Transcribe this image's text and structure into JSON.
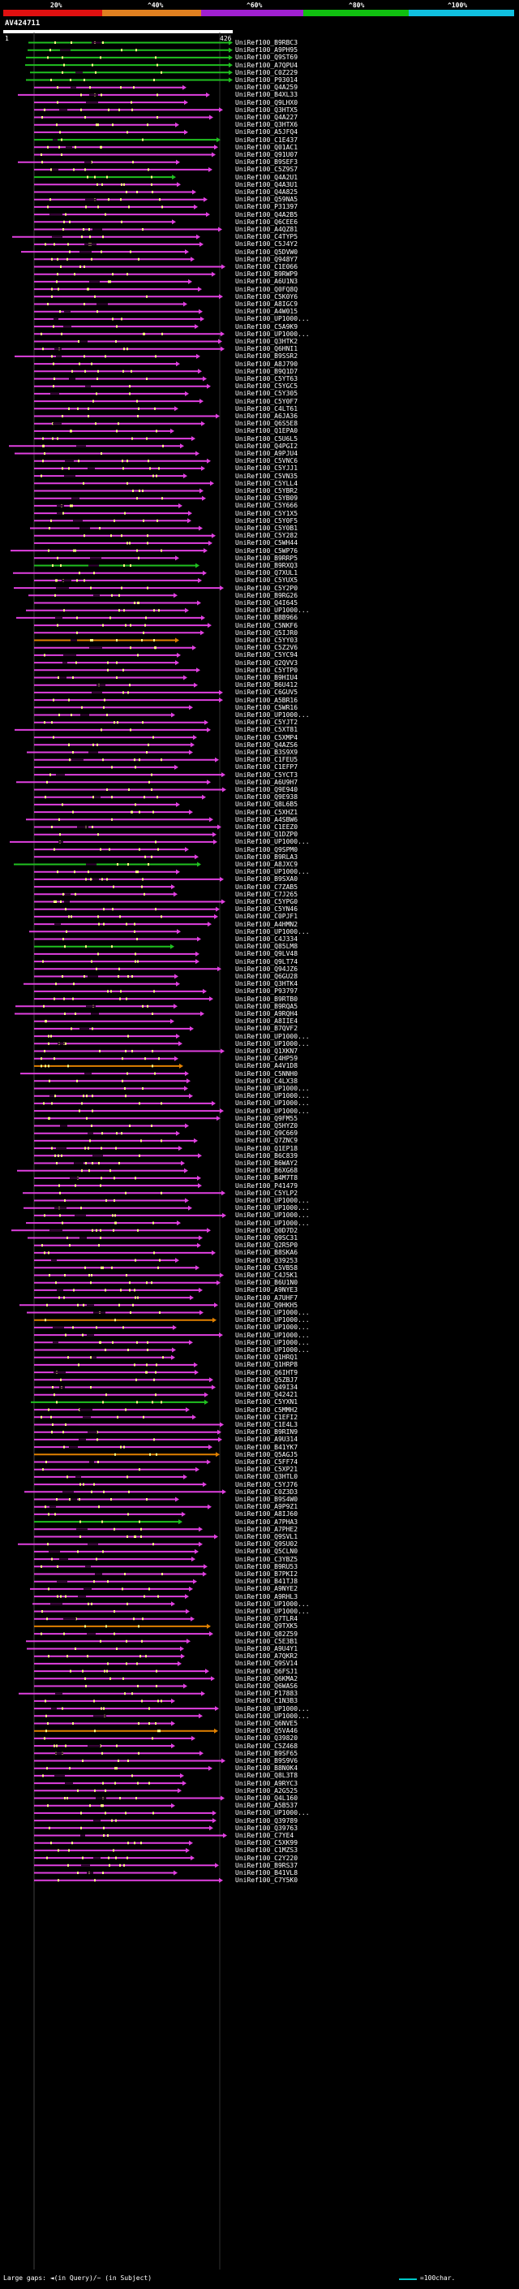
{
  "colors": {
    "background": "#000000",
    "identity_0_20": "#e01010",
    "identity_20_40": "#e08020",
    "identity_40_60": "#a020d0",
    "identity_60_80": "#10c010",
    "identity_80_100": "#10c0e0",
    "hit_magenta": "#e040e0",
    "hit_green": "#20c020",
    "hit_orange": "#e08000",
    "gap_marker": "#ffff80"
  },
  "identity_scale": [
    {
      "label": "20%"
    },
    {
      "label": "^40%"
    },
    {
      "label": "^60%"
    },
    {
      "label": "^80%"
    },
    {
      "label": "^100%"
    }
  ],
  "query": {
    "title": "AV424711",
    "start": "1",
    "end": "426"
  },
  "hits": [
    "UniRef100_B9RBC3",
    "UniRef100_A9PH95",
    "UniRef100_Q9ST69",
    "UniRef100_A7QPU4",
    "UniRef100_C0Z229",
    "UniRef100_P93014",
    "UniRef100_Q4A259",
    "UniRef100_B4XL33",
    "UniRef100_Q9LHX0",
    "UniRef100_Q3HTX5",
    "UniRef100_Q4A227",
    "UniRef100_Q3HTX6",
    "UniRef100_A5JFQ4",
    "UniRef100_C1E437",
    "UniRef100_Q01AC1",
    "UniRef100_Q91U07",
    "UniRef100_B9SEF3",
    "UniRef100_C5Z9S7",
    "UniRef100_Q4A2U1",
    "UniRef100_Q4A3U1",
    "UniRef100_Q4A825",
    "UniRef100_Q59NA5",
    "UniRef100_P31397",
    "UniRef100_Q4A2B5",
    "UniRef100_Q6CEE6",
    "UniRef100_A4QZ81",
    "UniRef100_C4TYP5",
    "UniRef100_C5J4Y2",
    "UniRef100_Q5DVW0",
    "UniRef100_Q948Y7",
    "UniRef100_C1E066",
    "UniRef100_B9RWP9",
    "UniRef100_A6U1N3",
    "UniRef100_Q0FQ8Q",
    "UniRef100_C5K0Y6",
    "UniRef100_A8IGC9",
    "UniRef100_A4W015",
    "UniRef100_UP1000...",
    "UniRef100_C5A9K9",
    "UniRef100_UP1000...",
    "UniRef100_Q3HTK2",
    "UniRef100_Q6HNI1",
    "UniRef100_B9SSR2",
    "UniRef100_A8J790",
    "UniRef100_B9Q1D7",
    "UniRef100_C5YT63",
    "UniRef100_C5YGC5",
    "UniRef100_C5Y305",
    "UniRef100_C5Y0F7",
    "UniRef100_C4LT61",
    "UniRef100_A6JA36",
    "UniRef100_Q6S5E8",
    "UniRef100_Q1EPA0",
    "UniRef100_C5U6L5",
    "UniRef100_Q4PGI2",
    "UniRef100_A9PJU4",
    "UniRef100_C5VNC6",
    "UniRef100_C5YJJ1",
    "UniRef100_C5VN35",
    "UniRef100_C5YLL4",
    "UniRef100_C5YBR2",
    "UniRef100_C5YB09",
    "UniRef100_C5Y666",
    "UniRef100_C5Y1X5",
    "UniRef100_C5Y0F5",
    "UniRef100_C5Y0B1",
    "UniRef100_C5Y282",
    "UniRef100_C5WH44",
    "UniRef100_C5WP76",
    "UniRef100_B9RRP5",
    "UniRef100_B9RXQ3",
    "UniRef100_Q7XUL1",
    "UniRef100_C5YUX5",
    "UniRef100_C5Y2P0",
    "UniRef100_B9RG26",
    "UniRef100_Q4I645",
    "UniRef100_UP1000...",
    "UniRef100_B8B966",
    "UniRef100_C5NKF6",
    "UniRef100_Q5IJR0",
    "UniRef100_C5YY03",
    "UniRef100_C5Z2V6",
    "UniRef100_C5YC94",
    "UniRef100_Q2QVV3",
    "UniRef100_C5YTP0",
    "UniRef100_B9HIU4",
    "UniRef100_B6U412",
    "UniRef100_C6GUV5",
    "UniRef100_A5BR16",
    "UniRef100_C5WR16",
    "UniRef100_UP1000...",
    "UniRef100_C5YJT2",
    "UniRef100_C5XT81",
    "UniRef100_C5XMP4",
    "UniRef100_Q4AZS6",
    "UniRef100_B3S9X9",
    "UniRef100_C1FEU5",
    "UniRef100_C1EFP7",
    "UniRef100_C5YCT3",
    "UniRef100_A6U9H7",
    "UniRef100_Q9E940",
    "UniRef100_Q9E938",
    "UniRef100_Q8L6B5",
    "UniRef100_C5XHZ1",
    "UniRef100_A4SBW6",
    "UniRef100_C1EEZ0",
    "UniRef100_Q1DZP0",
    "UniRef100_UP1000...",
    "UniRef100_Q9SPM0",
    "UniRef100_B9RLA3",
    "UniRef100_A8JXC9",
    "UniRef100_UP1000...",
    "UniRef100_B9SXA0",
    "UniRef100_C7ZAB5",
    "UniRef100_C7J265",
    "UniRef100_C5YPG0",
    "UniRef100_C5YN46",
    "UniRef100_C0PJF1",
    "UniRef100_A4HMN2",
    "UniRef100_UP1000...",
    "UniRef100_C4J334",
    "UniRef100_Q85LM8",
    "UniRef100_Q9LV48",
    "UniRef100_Q9LT74",
    "UniRef100_Q94JZ6",
    "UniRef100_Q6GU28",
    "UniRef100_Q3HTK4",
    "UniRef100_P93797",
    "UniRef100_B9RTB0",
    "UniRef100_B9RQA5",
    "UniRef100_A9RQH4",
    "UniRef100_A8IIE4",
    "UniRef100_B7QVF2",
    "UniRef100_UP1000...",
    "UniRef100_UP1000...",
    "UniRef100_Q1XKN7",
    "UniRef100_C4HP59",
    "UniRef100_A4V1D8",
    "UniRef100_C5NNH0",
    "UniRef100_C4LX38",
    "UniRef100_UP1000...",
    "UniRef100_UP1000...",
    "UniRef100_UP1000...",
    "UniRef100_UP1000...",
    "UniRef100_Q9FM55",
    "UniRef100_Q5HYZ0",
    "UniRef100_Q9C669",
    "UniRef100_Q7ZNC9",
    "UniRef100_Q1EP18",
    "UniRef100_B6C839",
    "UniRef100_B6WAY2",
    "UniRef100_B6XG68",
    "UniRef100_B4M7T8",
    "UniRef100_P41479",
    "UniRef100_C5YLP2",
    "UniRef100_UP1000...",
    "UniRef100_UP1000...",
    "UniRef100_UP1000...",
    "UniRef100_UP1000...",
    "UniRef100_Q0D7D2",
    "UniRef100_Q9SC31",
    "UniRef100_Q2R5P0",
    "UniRef100_B8SKA6",
    "UniRef100_Q39253",
    "UniRef100_C5VB58",
    "UniRef100_C4J5K1",
    "UniRef100_B6U1N0",
    "UniRef100_A9NYE3",
    "UniRef100_A7UHF7",
    "UniRef100_Q9HKH5",
    "UniRef100_UP1000...",
    "UniRef100_UP1000...",
    "UniRef100_UP1000...",
    "UniRef100_UP1000...",
    "UniRef100_UP1000...",
    "UniRef100_UP1000...",
    "UniRef100_Q1HRQ1",
    "UniRef100_Q1HRP8",
    "UniRef100_Q6IHT9",
    "UniRef100_Q5ZBJ7",
    "UniRef100_Q49I34",
    "UniRef100_Q42421",
    "UniRef100_C5YXN1",
    "UniRef100_C5MMH2",
    "UniRef100_C1EFI2",
    "UniRef100_C1E4L3",
    "UniRef100_B9RIN9",
    "UniRef100_A9U314",
    "UniRef100_B41YK7",
    "UniRef100_Q5AGJ5",
    "UniRef100_C5FF74",
    "UniRef100_C5XP21",
    "UniRef100_Q3HTL0",
    "UniRef100_C5YJ76",
    "UniRef100_C0Z3D3",
    "UniRef100_B9S4W0",
    "UniRef100_A9P9Z1",
    "UniRef100_A8IJ60",
    "UniRef100_A7PHA3",
    "UniRef100_A7PHE2",
    "UniRef100_Q9SVL1",
    "UniRef100_Q9SU02",
    "UniRef100_Q5CLN0",
    "UniRef100_C3YBZ5",
    "UniRef100_B9RU53",
    "UniRef100_B7PKI2",
    "UniRef100_B41TJ8",
    "UniRef100_A9NYE2",
    "UniRef100_A9RHL3",
    "UniRef100_UP1000...",
    "UniRef100_UP1000...",
    "UniRef100_Q7TLR4",
    "UniRef100_Q9TXK5",
    "UniRef100_Q82Z59",
    "UniRef100_C5E3B1",
    "UniRef100_A9U4Y1",
    "UniRef100_A7QKR2",
    "UniRef100_Q9SV14",
    "UniRef100_Q6FSJ1",
    "UniRef100_Q6KMA2",
    "UniRef100_Q6WAS6",
    "UniRef100_P17883",
    "UniRef100_C1N3B3",
    "UniRef100_UP1000...",
    "UniRef100_UP1000...",
    "UniRef100_Q6NVE5",
    "UniRef100_Q5VA46",
    "UniRef100_Q39820",
    "UniRef100_C5Z468",
    "UniRef100_B9SF65",
    "UniRef100_B9S9V6",
    "UniRef100_B8N0K4",
    "UniRef100_Q8L3T8",
    "UniRef100_A9RYC3",
    "UniRef100_A2G525",
    "UniRef100_Q4L160",
    "UniRef100_A5B537",
    "UniRef100_UP1000...",
    "UniRef100_Q39789",
    "UniRef100_Q39763",
    "UniRef100_C7YE4",
    "UniRef100_C5XK99",
    "UniRef100_C1MZS3",
    "UniRef100_C2Y220",
    "UniRef100_B9RS37",
    "UniRef100_B41VL8",
    "UniRef100_C7Y5K0"
  ],
  "legend": {
    "text": "Large gaps: ◄(in Query)/~ (in Subject)",
    "key": "=100char."
  }
}
